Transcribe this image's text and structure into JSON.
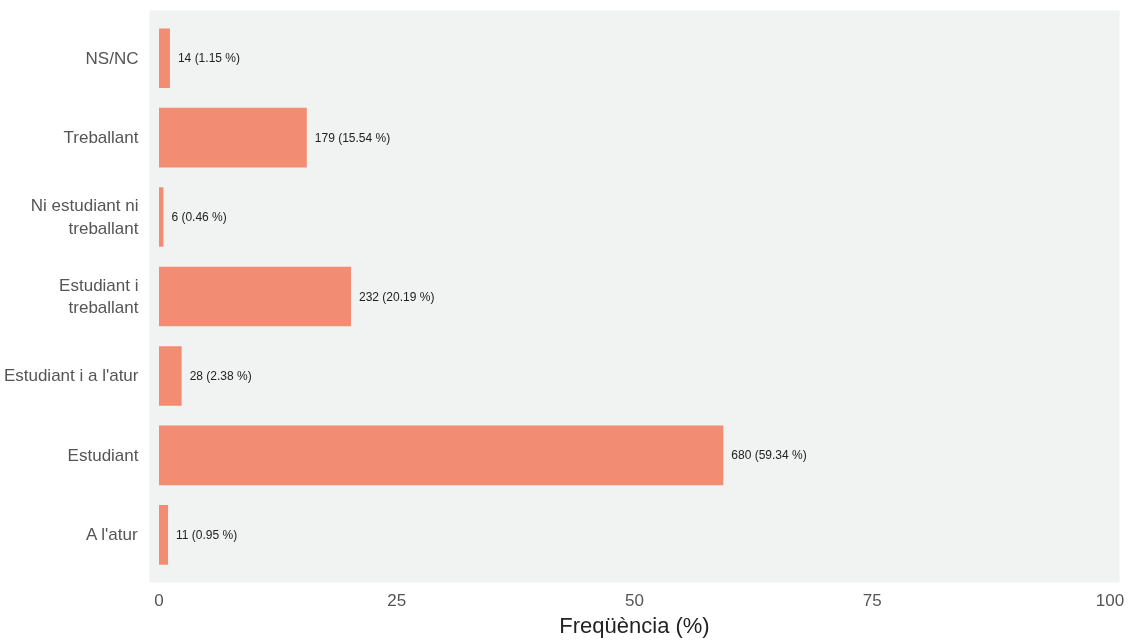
{
  "chart_data": {
    "type": "bar",
    "orientation": "horizontal",
    "xlabel": "Freqüència (%)",
    "categories": [
      "NS/NC",
      "Treballant",
      "Ni estudiant ni treballant",
      "Estudiant i treballant",
      "Estudiant i a l'atur",
      "Estudiant",
      "A l'atur"
    ],
    "values": [
      1.15,
      15.54,
      0.46,
      20.19,
      2.38,
      59.34,
      0.95
    ],
    "value_labels": [
      "14 (1.15 %)",
      "179 (15.54 %)",
      "6 (0.46 %)",
      "232 (20.19 %)",
      "28 (2.38 %)",
      "680 (59.34 %)",
      "11 (0.95 %)"
    ],
    "color": "#f28c73",
    "xlim": [
      -1,
      101
    ],
    "xticks": [
      0,
      25,
      50,
      75,
      100
    ],
    "grid": false
  }
}
